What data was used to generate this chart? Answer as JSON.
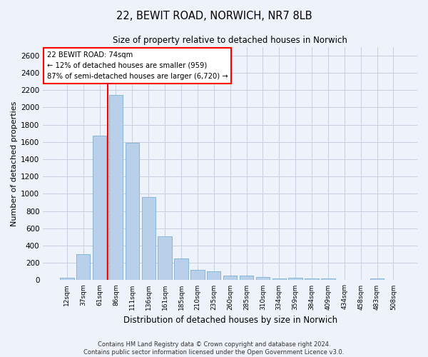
{
  "title": "22, BEWIT ROAD, NORWICH, NR7 8LB",
  "subtitle": "Size of property relative to detached houses in Norwich",
  "xlabel": "Distribution of detached houses by size in Norwich",
  "ylabel": "Number of detached properties",
  "categories": [
    "12sqm",
    "37sqm",
    "61sqm",
    "86sqm",
    "111sqm",
    "136sqm",
    "161sqm",
    "185sqm",
    "210sqm",
    "235sqm",
    "260sqm",
    "285sqm",
    "310sqm",
    "334sqm",
    "359sqm",
    "384sqm",
    "409sqm",
    "434sqm",
    "458sqm",
    "483sqm",
    "508sqm"
  ],
  "values": [
    25,
    300,
    1670,
    2140,
    1590,
    960,
    505,
    250,
    120,
    100,
    50,
    50,
    35,
    20,
    30,
    20,
    20,
    5,
    5,
    20,
    0
  ],
  "bar_color": "#b8d0ea",
  "bar_edge_color": "#7aafd4",
  "annotation_line1": "22 BEWIT ROAD: 74sqm",
  "annotation_line2": "← 12% of detached houses are smaller (959)",
  "annotation_line3": "87% of semi-detached houses are larger (6,720) →",
  "ylim": [
    0,
    2700
  ],
  "yticks": [
    0,
    200,
    400,
    600,
    800,
    1000,
    1200,
    1400,
    1600,
    1800,
    2000,
    2200,
    2400,
    2600
  ],
  "footer_line1": "Contains HM Land Registry data © Crown copyright and database right 2024.",
  "footer_line2": "Contains public sector information licensed under the Open Government Licence v3.0.",
  "bg_color": "#eef2fa",
  "plot_bg_color": "#eef2fa",
  "grid_color": "#c5cfe0"
}
